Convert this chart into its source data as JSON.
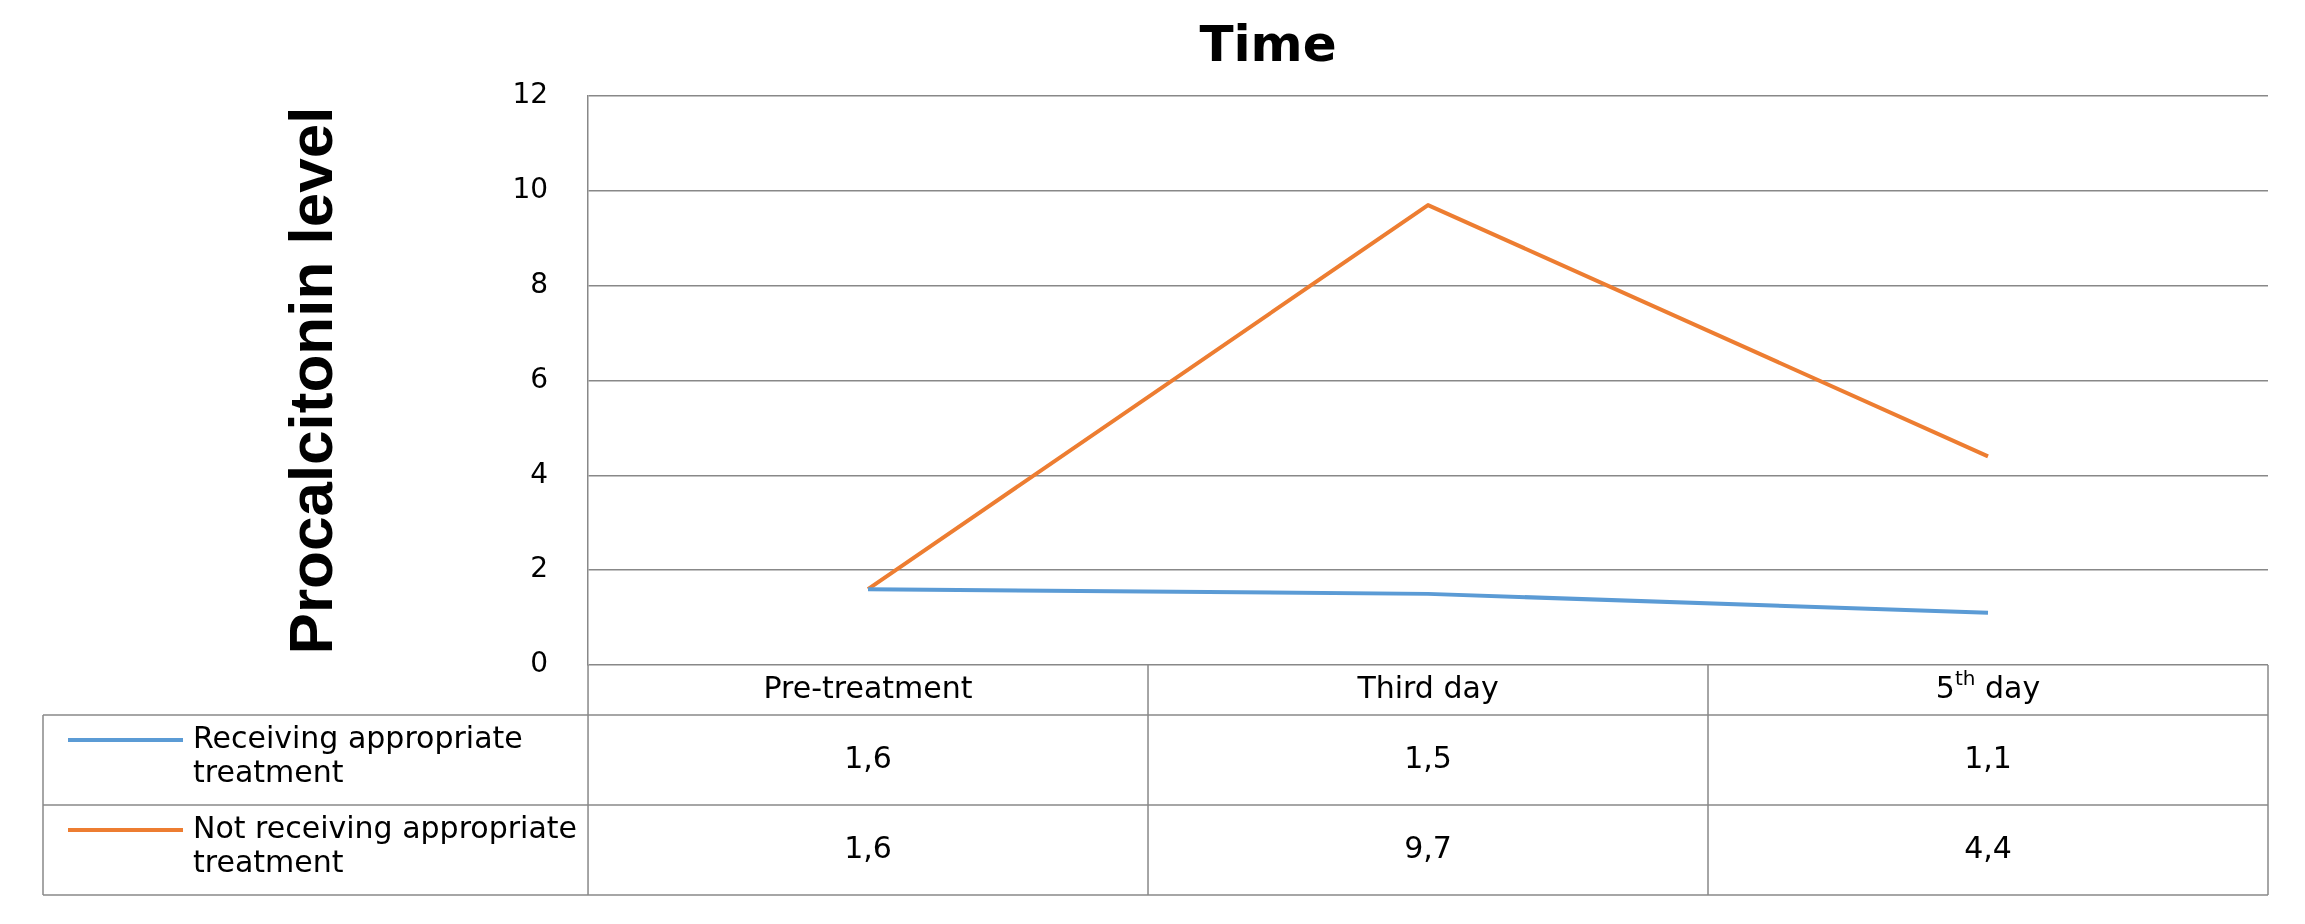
{
  "chart_data": {
    "type": "line",
    "title": "Time",
    "ylabel": "Procalcitonin level",
    "categories": [
      "Pre-treatment",
      "Third day",
      "5$^{th}$ day"
    ],
    "series": [
      {
        "name": "Receiving appropriate treatment",
        "color": "#5b9bd5",
        "values": [
          1.6,
          1.5,
          1.1
        ],
        "value_labels": [
          "1,6",
          "1,5",
          "1,1"
        ]
      },
      {
        "name": "Not receiving appropriate treatment",
        "color": "#ed7d31",
        "values": [
          1.6,
          9.7,
          4.4
        ],
        "value_labels": [
          "1,6",
          "9,7",
          "4,4"
        ]
      }
    ],
    "ylim": [
      0,
      12
    ],
    "yticks": [
      0,
      2,
      4,
      6,
      8,
      10,
      12
    ],
    "grid": "y",
    "legend": "bottom",
    "marker": "none",
    "line_style": "solid"
  }
}
